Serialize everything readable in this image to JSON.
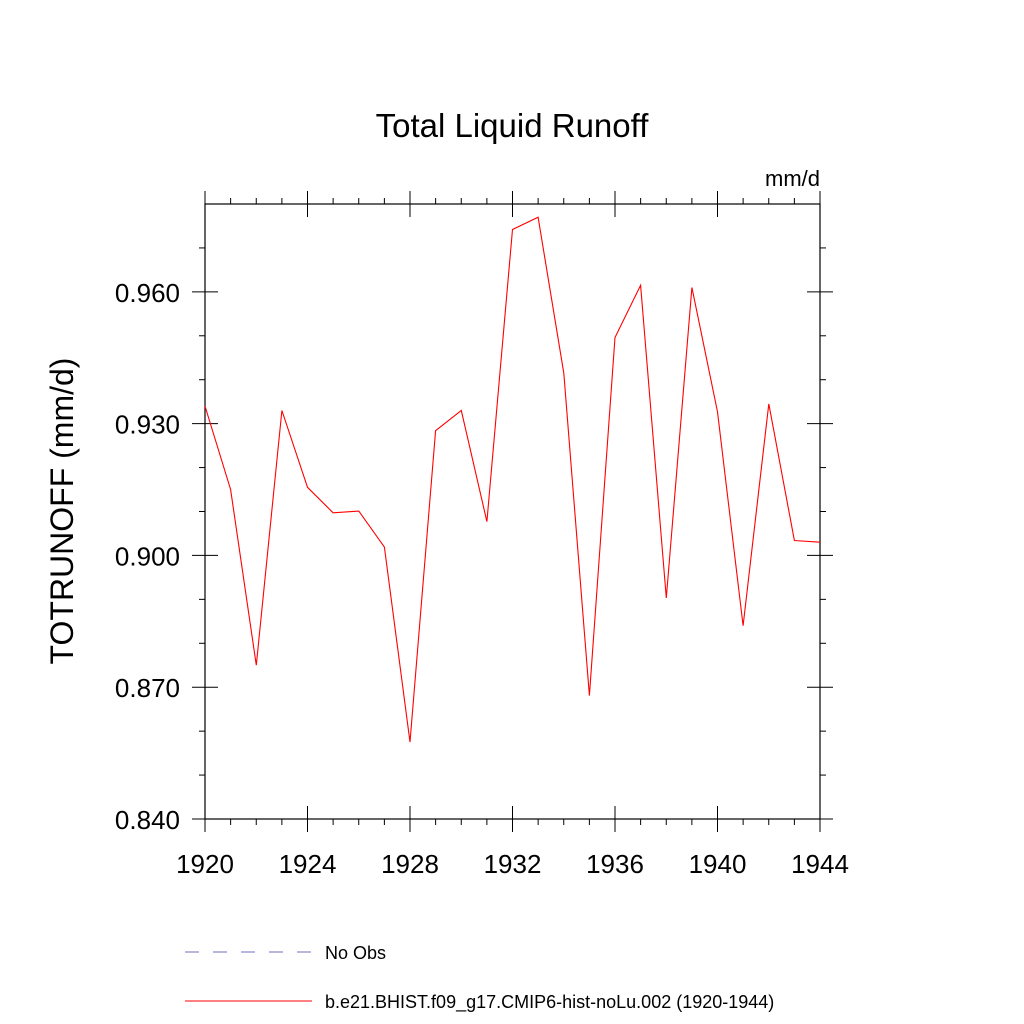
{
  "chart_data": {
    "type": "line",
    "title": "Total Liquid Runoff",
    "units_label": "mm/d",
    "ylabel": "TOTRUNOFF  (mm/d)",
    "xlabel": "",
    "xlim": [
      1920,
      1944
    ],
    "ylim": [
      0.84,
      0.98
    ],
    "x_ticks": [
      1920,
      1924,
      1928,
      1932,
      1936,
      1940,
      1944
    ],
    "x_tick_labels": [
      "1920",
      "1924",
      "1928",
      "1932",
      "1936",
      "1940",
      "1944"
    ],
    "y_ticks": [
      0.84,
      0.87,
      0.9,
      0.93,
      0.96
    ],
    "y_tick_labels": [
      "0.840",
      "0.870",
      "0.900",
      "0.930",
      "0.960"
    ],
    "grid": false,
    "legend_position": "bottom",
    "legend": [
      {
        "label": "No Obs",
        "color": "#6f6fbf",
        "style": "dashed"
      },
      {
        "label": "b.e21.BHIST.f09_g17.CMIP6-hist-noLu.002 (1920-1944)",
        "color": "#ff0000",
        "style": "solid"
      }
    ],
    "series": [
      {
        "name": "b.e21.BHIST.f09_g17.CMIP6-hist-noLu.002 (1920-1944)",
        "color": "#ff0000",
        "x": [
          1920,
          1921,
          1922,
          1923,
          1924,
          1925,
          1926,
          1927,
          1928,
          1929,
          1930,
          1931,
          1932,
          1933,
          1934,
          1935,
          1936,
          1937,
          1938,
          1939,
          1940,
          1941,
          1942,
          1943,
          1944
        ],
        "values": [
          0.934,
          0.915,
          0.875,
          0.933,
          0.9155,
          0.9097,
          0.9101,
          0.9019,
          0.8575,
          0.9284,
          0.933,
          0.9077,
          0.9742,
          0.977,
          0.9415,
          0.8681,
          0.9496,
          0.9615,
          0.8903,
          0.961,
          0.9327,
          0.884,
          0.9345,
          0.9034,
          0.903
        ]
      }
    ]
  }
}
